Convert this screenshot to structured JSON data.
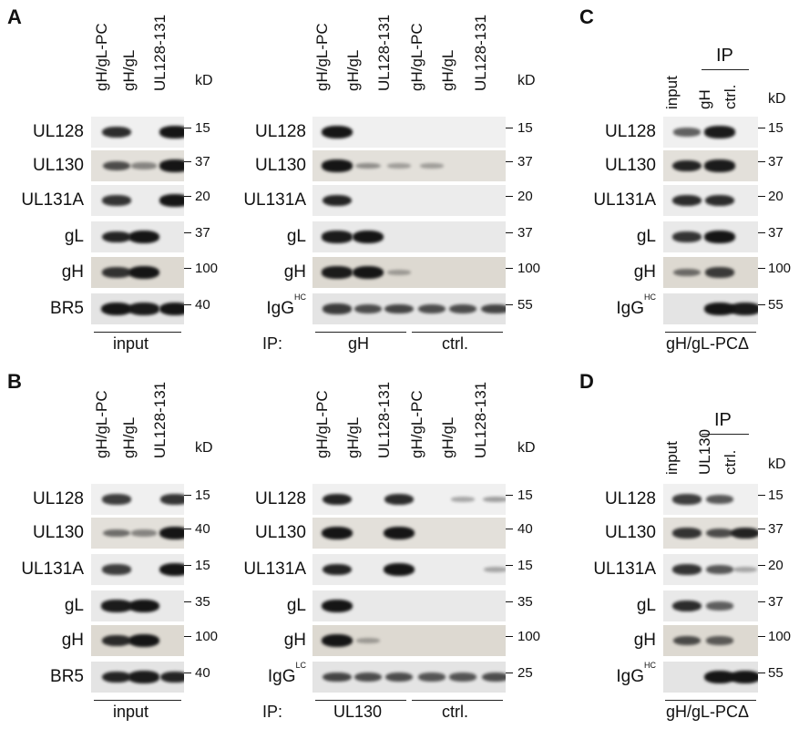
{
  "panels": {
    "A": {
      "letter": "A",
      "input_blot": {
        "lanes": [
          "gH/gL-PC",
          "gH/gL",
          "UL128-131"
        ],
        "kd_label": "kD",
        "rows": [
          {
            "label": "UL128",
            "marker": "15"
          },
          {
            "label": "UL130",
            "marker": "37"
          },
          {
            "label": "UL131A",
            "marker": "20"
          },
          {
            "label": "gL",
            "marker": "37"
          },
          {
            "label": "gH",
            "marker": "100"
          },
          {
            "label": "BR5",
            "marker": "40"
          }
        ],
        "footer": "input"
      },
      "ip_blot": {
        "lanes": [
          "gH/gL-PC",
          "gH/gL",
          "UL128-131",
          "gH/gL-PC",
          "gH/gL",
          "UL128-131"
        ],
        "kd_label": "kD",
        "rows": [
          {
            "label": "UL128",
            "marker": "15"
          },
          {
            "label": "UL130",
            "marker": "37"
          },
          {
            "label": "UL131A",
            "marker": "20"
          },
          {
            "label": "gL",
            "marker": "37"
          },
          {
            "label": "gH",
            "marker": "100"
          },
          {
            "label": "IgG",
            "sup": "HC",
            "marker": "55"
          }
        ],
        "footer_prefix": "IP:",
        "footer_groups": [
          "gH",
          "ctrl."
        ]
      }
    },
    "B": {
      "letter": "B",
      "input_blot": {
        "lanes": [
          "gH/gL-PC",
          "gH/gL",
          "UL128-131"
        ],
        "kd_label": "kD",
        "rows": [
          {
            "label": "UL128",
            "marker": "15"
          },
          {
            "label": "UL130",
            "marker": "40"
          },
          {
            "label": "UL131A",
            "marker": "15"
          },
          {
            "label": "gL",
            "marker": "35"
          },
          {
            "label": "gH",
            "marker": "100"
          },
          {
            "label": "BR5",
            "marker": "40"
          }
        ],
        "footer": "input"
      },
      "ip_blot": {
        "lanes": [
          "gH/gL-PC",
          "gH/gL",
          "UL128-131",
          "gH/gL-PC",
          "gH/gL",
          "UL128-131"
        ],
        "kd_label": "kD",
        "rows": [
          {
            "label": "UL128",
            "marker": "15"
          },
          {
            "label": "UL130",
            "marker": "40"
          },
          {
            "label": "UL131A",
            "marker": "15"
          },
          {
            "label": "gL",
            "marker": "35"
          },
          {
            "label": "gH",
            "marker": "100"
          },
          {
            "label": "IgG",
            "sup": "LC",
            "marker": "25"
          }
        ],
        "footer_prefix": "IP:",
        "footer_groups": [
          "UL130",
          "ctrl."
        ]
      }
    },
    "C": {
      "letter": "C",
      "header": "IP",
      "lanes": [
        "input",
        "gH",
        "ctrl."
      ],
      "kd_label": "kD",
      "rows": [
        {
          "label": "UL128",
          "marker": "15"
        },
        {
          "label": "UL130",
          "marker": "37"
        },
        {
          "label": "UL131A",
          "marker": "20"
        },
        {
          "label": "gL",
          "marker": "37"
        },
        {
          "label": "gH",
          "marker": "100"
        },
        {
          "label": "IgG",
          "sup": "HC",
          "marker": "55"
        }
      ],
      "footer": "gH/gL-PCΔ"
    },
    "D": {
      "letter": "D",
      "header": "IP",
      "lanes": [
        "input",
        "UL130",
        "ctrl."
      ],
      "kd_label": "kD",
      "rows": [
        {
          "label": "UL128",
          "marker": "15"
        },
        {
          "label": "UL130",
          "marker": "37"
        },
        {
          "label": "UL131A",
          "marker": "20"
        },
        {
          "label": "gL",
          "marker": "37"
        },
        {
          "label": "gH",
          "marker": "100"
        },
        {
          "label": "IgG",
          "sup": "HC",
          "marker": "55"
        }
      ],
      "footer": "gH/gL-PCΔ"
    }
  },
  "colors": {
    "band": "#151515",
    "strip_light": "#ececec",
    "strip_mid": "#d9d6d0",
    "strip_dark": "#a9a9a9"
  }
}
